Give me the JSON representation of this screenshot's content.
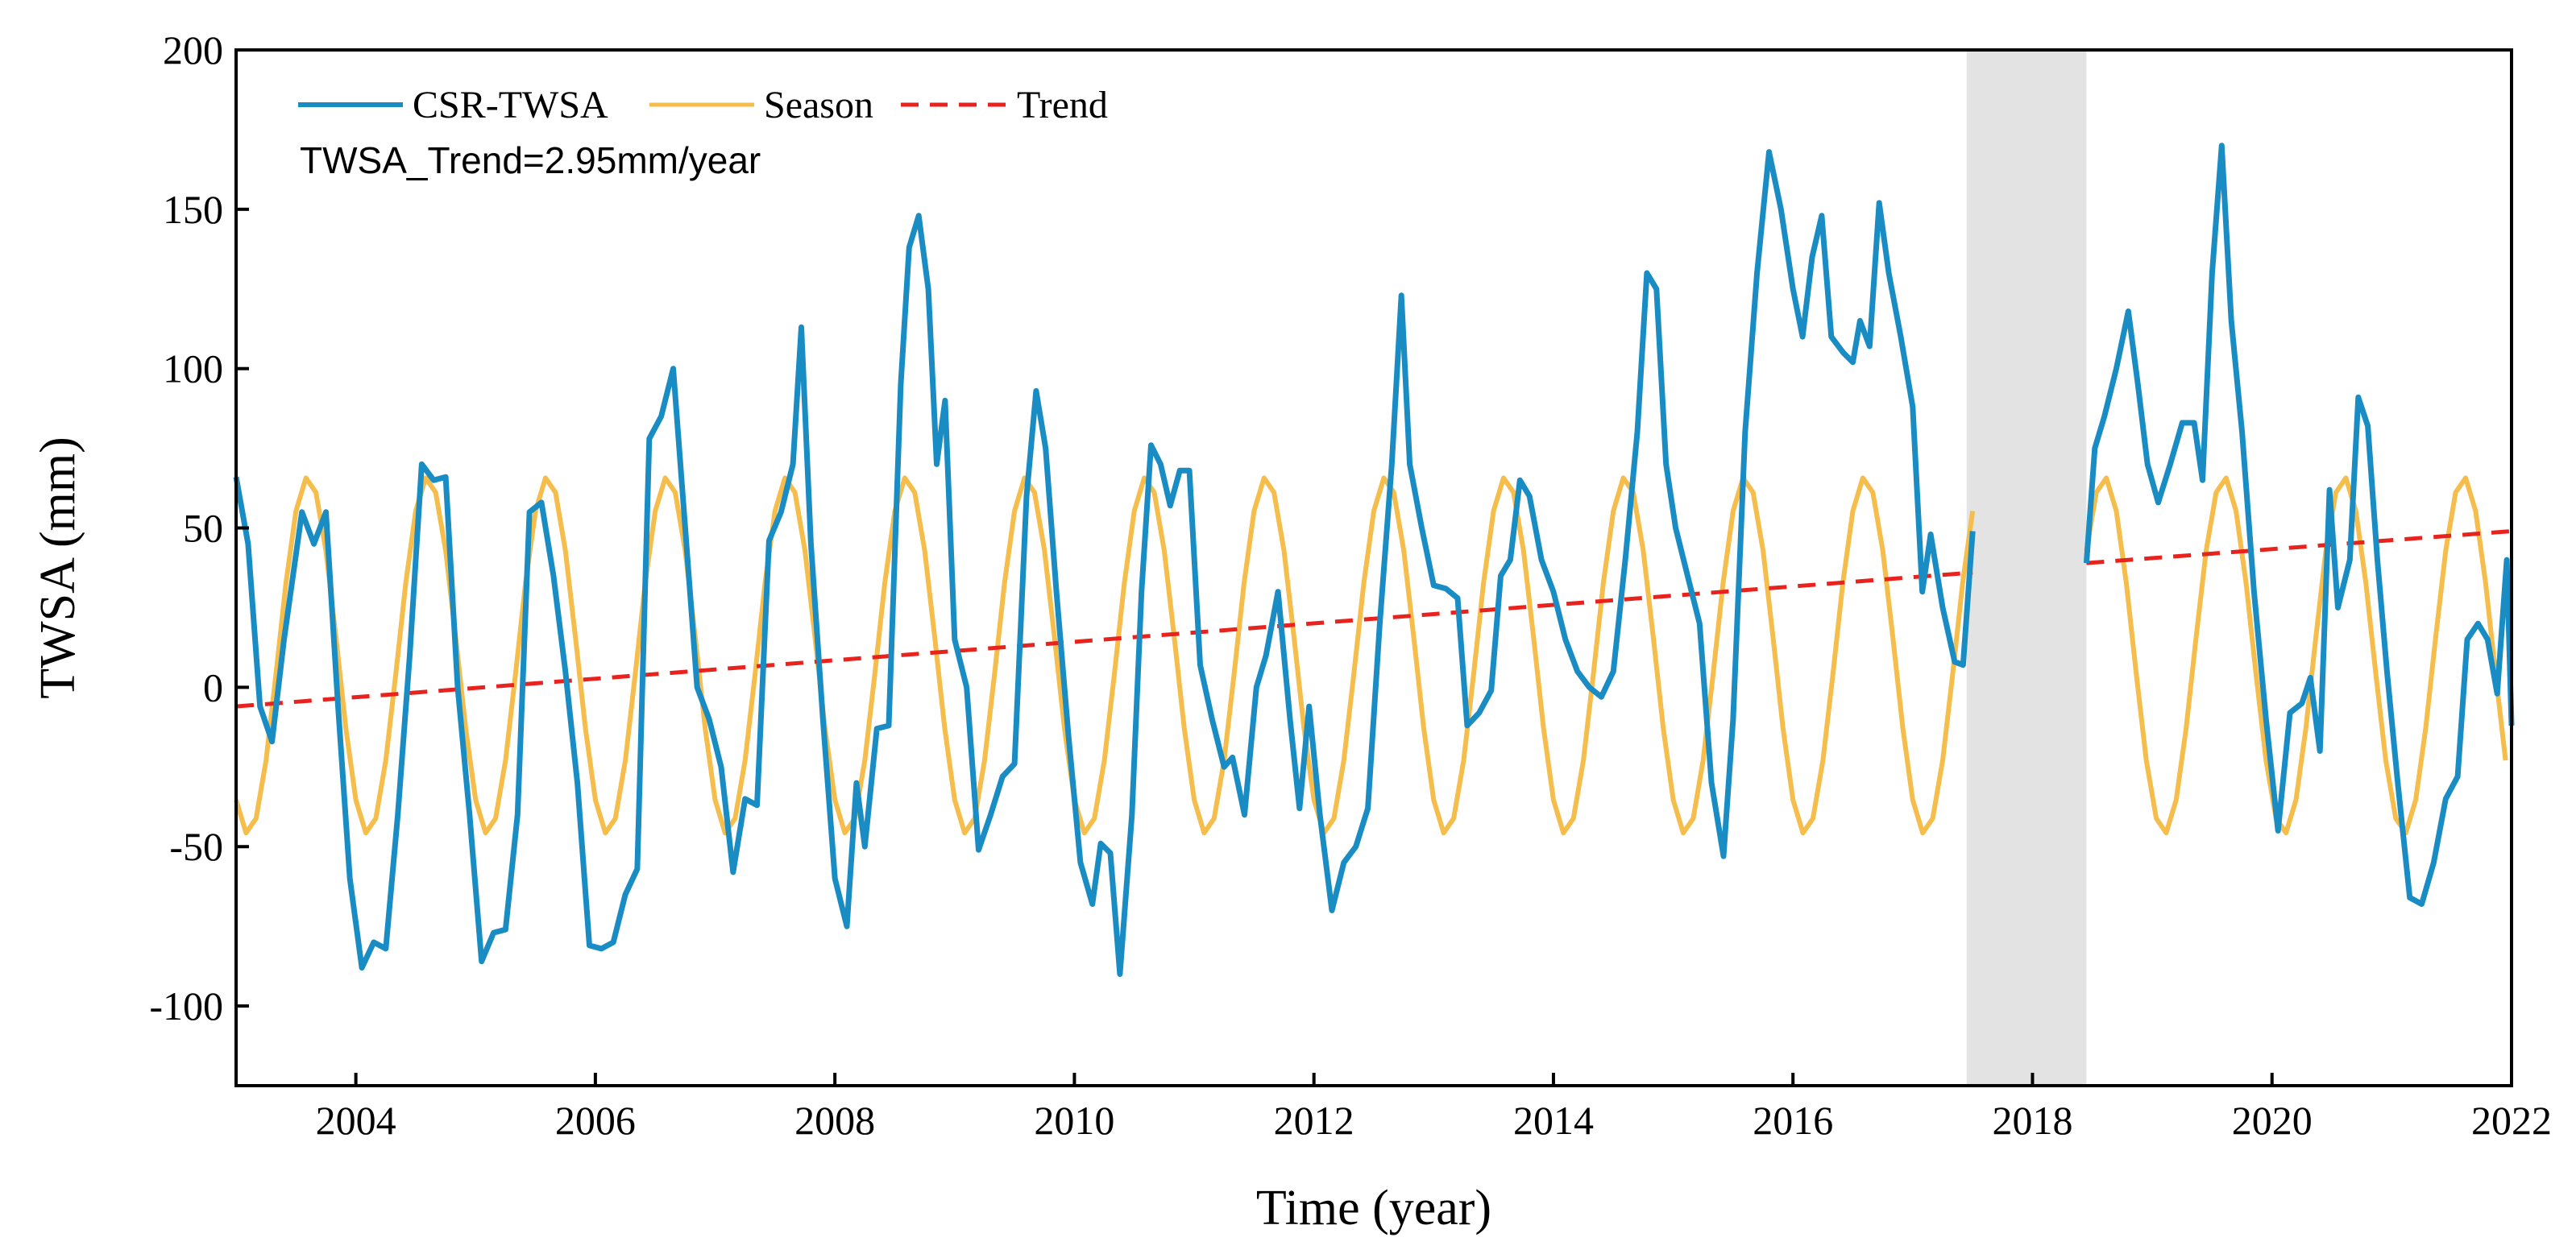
{
  "chart_data": {
    "type": "line",
    "title": "",
    "xlabel": "Time (year)",
    "ylabel": "TWSA (mm)",
    "xlim": [
      2003.0,
      2022.0
    ],
    "ylim": [
      -125,
      200
    ],
    "xticks": [
      2004,
      2006,
      2008,
      2010,
      2012,
      2014,
      2016,
      2018,
      2020,
      2022
    ],
    "yticks": [
      -100,
      -50,
      0,
      50,
      100,
      150,
      200
    ],
    "grid": false,
    "legend_position": "top-left",
    "annotation": "TWSA_Trend=2.95mm/year",
    "shaded_gap": {
      "start": 2017.45,
      "end": 2018.45,
      "color": "#e3e3e3"
    },
    "series": [
      {
        "name": "CSR-TWSA",
        "color": "#1a8cc4",
        "segments": [
          [
            [
              2003.0,
              66
            ],
            [
              2003.1,
              45
            ],
            [
              2003.2,
              -6
            ],
            [
              2003.3,
              -17
            ],
            [
              2003.4,
              15
            ],
            [
              2003.55,
              55
            ],
            [
              2003.65,
              45
            ],
            [
              2003.75,
              55
            ],
            [
              2003.85,
              -5
            ],
            [
              2003.95,
              -60
            ],
            [
              2004.05,
              -88
            ],
            [
              2004.15,
              -80
            ],
            [
              2004.25,
              -82
            ],
            [
              2004.35,
              -40
            ],
            [
              2004.45,
              10
            ],
            [
              2004.55,
              70
            ],
            [
              2004.65,
              65
            ],
            [
              2004.75,
              66
            ],
            [
              2004.85,
              0
            ],
            [
              2004.95,
              -40
            ],
            [
              2005.05,
              -86
            ],
            [
              2005.15,
              -77
            ],
            [
              2005.25,
              -76
            ],
            [
              2005.35,
              -40
            ],
            [
              2005.45,
              55
            ],
            [
              2005.55,
              58
            ],
            [
              2005.65,
              35
            ],
            [
              2005.75,
              5
            ],
            [
              2005.85,
              -30
            ],
            [
              2005.95,
              -81
            ],
            [
              2006.05,
              -82
            ],
            [
              2006.15,
              -80
            ],
            [
              2006.25,
              -65
            ],
            [
              2006.35,
              -57
            ],
            [
              2006.45,
              78
            ],
            [
              2006.55,
              85
            ],
            [
              2006.65,
              100
            ],
            [
              2006.75,
              50
            ],
            [
              2006.85,
              0
            ],
            [
              2006.95,
              -10
            ],
            [
              2007.05,
              -25
            ],
            [
              2007.15,
              -58
            ],
            [
              2007.25,
              -35
            ],
            [
              2007.35,
              -37
            ],
            [
              2007.45,
              46
            ],
            [
              2007.55,
              55
            ],
            [
              2007.65,
              70
            ],
            [
              2007.72,
              113
            ],
            [
              2007.8,
              45
            ],
            [
              2007.9,
              -10
            ],
            [
              2008.0,
              -60
            ],
            [
              2008.1,
              -75
            ],
            [
              2008.18,
              -30
            ],
            [
              2008.25,
              -50
            ],
            [
              2008.35,
              -13
            ],
            [
              2008.45,
              -12
            ],
            [
              2008.55,
              95
            ],
            [
              2008.62,
              138
            ],
            [
              2008.7,
              148
            ],
            [
              2008.78,
              125
            ],
            [
              2008.85,
              70
            ],
            [
              2008.92,
              90
            ],
            [
              2009.0,
              15
            ],
            [
              2009.1,
              0
            ],
            [
              2009.2,
              -51
            ],
            [
              2009.3,
              -40
            ],
            [
              2009.4,
              -28
            ],
            [
              2009.5,
              -24
            ],
            [
              2009.6,
              60
            ],
            [
              2009.68,
              93
            ],
            [
              2009.76,
              75
            ],
            [
              2009.85,
              30
            ],
            [
              2009.95,
              -15
            ],
            [
              2010.05,
              -55
            ],
            [
              2010.15,
              -68
            ],
            [
              2010.22,
              -49
            ],
            [
              2010.3,
              -52
            ],
            [
              2010.38,
              -90
            ],
            [
              2010.48,
              -40
            ],
            [
              2010.56,
              30
            ],
            [
              2010.64,
              76
            ],
            [
              2010.72,
              70
            ],
            [
              2010.8,
              57
            ],
            [
              2010.88,
              68
            ],
            [
              2010.96,
              68
            ],
            [
              2011.05,
              7
            ],
            [
              2011.15,
              -10
            ],
            [
              2011.25,
              -25
            ],
            [
              2011.32,
              -22
            ],
            [
              2011.42,
              -40
            ],
            [
              2011.52,
              0
            ],
            [
              2011.6,
              10
            ],
            [
              2011.7,
              30
            ],
            [
              2011.8,
              -10
            ],
            [
              2011.88,
              -38
            ],
            [
              2011.96,
              -6
            ],
            [
              2012.05,
              -40
            ],
            [
              2012.15,
              -70
            ],
            [
              2012.25,
              -55
            ],
            [
              2012.35,
              -50
            ],
            [
              2012.45,
              -38
            ],
            [
              2012.55,
              20
            ],
            [
              2012.65,
              70
            ],
            [
              2012.73,
              123
            ],
            [
              2012.8,
              70
            ],
            [
              2012.9,
              50
            ],
            [
              2013.0,
              32
            ],
            [
              2013.1,
              31
            ],
            [
              2013.2,
              28
            ],
            [
              2013.28,
              -12
            ],
            [
              2013.38,
              -8
            ],
            [
              2013.48,
              -1
            ],
            [
              2013.56,
              35
            ],
            [
              2013.64,
              40
            ],
            [
              2013.72,
              65
            ],
            [
              2013.8,
              60
            ],
            [
              2013.9,
              40
            ],
            [
              2014.0,
              30
            ],
            [
              2014.1,
              15
            ],
            [
              2014.2,
              5
            ],
            [
              2014.3,
              0
            ],
            [
              2014.4,
              -3
            ],
            [
              2014.5,
              5
            ],
            [
              2014.6,
              40
            ],
            [
              2014.7,
              80
            ],
            [
              2014.78,
              130
            ],
            [
              2014.86,
              125
            ],
            [
              2014.94,
              70
            ],
            [
              2015.02,
              50
            ],
            [
              2015.12,
              35
            ],
            [
              2015.22,
              20
            ],
            [
              2015.32,
              -30
            ],
            [
              2015.42,
              -53
            ],
            [
              2015.5,
              -10
            ],
            [
              2015.6,
              80
            ],
            [
              2015.7,
              130
            ],
            [
              2015.8,
              168
            ],
            [
              2015.9,
              150
            ],
            [
              2016.0,
              125
            ],
            [
              2016.08,
              110
            ],
            [
              2016.16,
              135
            ],
            [
              2016.24,
              148
            ],
            [
              2016.32,
              110
            ],
            [
              2016.42,
              105
            ],
            [
              2016.5,
              102
            ],
            [
              2016.56,
              115
            ],
            [
              2016.64,
              107
            ],
            [
              2016.72,
              152
            ],
            [
              2016.8,
              130
            ],
            [
              2016.9,
              110
            ],
            [
              2017.0,
              88
            ],
            [
              2017.08,
              30
            ],
            [
              2017.15,
              48
            ],
            [
              2017.25,
              25
            ],
            [
              2017.35,
              8
            ],
            [
              2017.42,
              7
            ],
            [
              2017.5,
              49
            ]
          ],
          [
            [
              2018.45,
              39
            ],
            [
              2018.52,
              75
            ],
            [
              2018.6,
              85
            ],
            [
              2018.7,
              100
            ],
            [
              2018.8,
              118
            ],
            [
              2018.88,
              95
            ],
            [
              2018.96,
              70
            ],
            [
              2019.05,
              58
            ],
            [
              2019.15,
              70
            ],
            [
              2019.25,
              83
            ],
            [
              2019.35,
              83
            ],
            [
              2019.42,
              65
            ],
            [
              2019.5,
              130
            ],
            [
              2019.58,
              170
            ],
            [
              2019.66,
              115
            ],
            [
              2019.75,
              80
            ],
            [
              2019.85,
              30
            ],
            [
              2019.95,
              -10
            ],
            [
              2020.05,
              -45
            ],
            [
              2020.15,
              -8
            ],
            [
              2020.25,
              -5
            ],
            [
              2020.32,
              3
            ],
            [
              2020.4,
              -20
            ],
            [
              2020.48,
              62
            ],
            [
              2020.55,
              25
            ],
            [
              2020.65,
              40
            ],
            [
              2020.72,
              91
            ],
            [
              2020.8,
              82
            ],
            [
              2020.88,
              40
            ],
            [
              2020.96,
              5
            ],
            [
              2021.05,
              -30
            ],
            [
              2021.15,
              -66
            ],
            [
              2021.25,
              -68
            ],
            [
              2021.35,
              -55
            ],
            [
              2021.45,
              -35
            ],
            [
              2021.55,
              -28
            ],
            [
              2021.63,
              15
            ],
            [
              2021.72,
              20
            ],
            [
              2021.8,
              15
            ],
            [
              2021.88,
              -2
            ],
            [
              2021.96,
              40
            ],
            [
              2022.0,
              -12
            ]
          ]
        ]
      },
      {
        "name": "Season",
        "color": "#f5bd4b",
        "amplitude": 56,
        "offset": 10,
        "peak_fraction": 0.6,
        "segments": [
          [
            2003.0,
            2017.5
          ],
          [
            2018.45,
            2022.0
          ]
        ]
      },
      {
        "name": "Trend",
        "color": "#e8231e",
        "style": "dashed",
        "slope_mm_per_year": 2.95,
        "segments": [
          [
            [
              2003.0,
              -6
            ],
            [
              2017.5,
              36
            ]
          ],
          [
            [
              2018.45,
              39
            ],
            [
              2022.0,
              49
            ]
          ]
        ]
      }
    ]
  }
}
